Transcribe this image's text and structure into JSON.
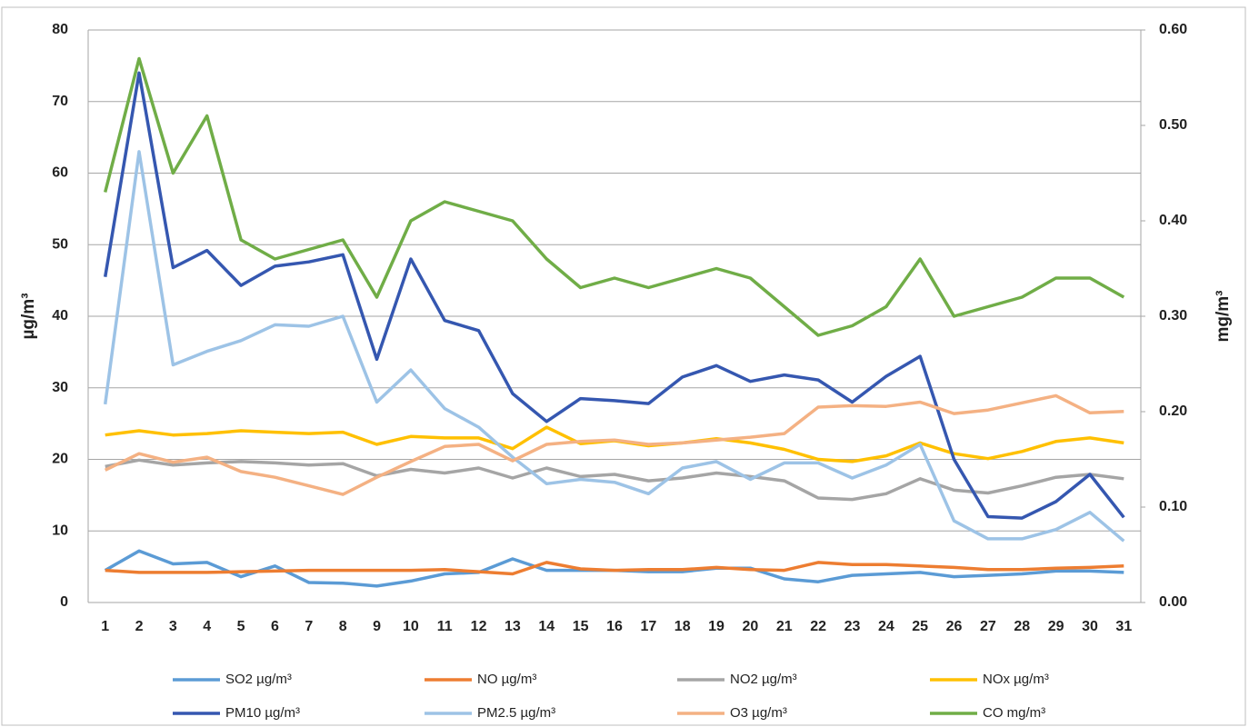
{
  "chart_data": {
    "type": "line",
    "y_label": "µg/m³",
    "y2_label": "mg/m³",
    "categories": [
      1,
      2,
      3,
      4,
      5,
      6,
      7,
      8,
      9,
      10,
      11,
      12,
      13,
      14,
      15,
      16,
      17,
      18,
      19,
      20,
      21,
      22,
      23,
      24,
      25,
      26,
      27,
      28,
      29,
      30,
      31
    ],
    "ylim": [
      0,
      80
    ],
    "yticks": [
      0,
      10,
      20,
      30,
      40,
      50,
      60,
      70,
      80
    ],
    "y2lim": [
      0,
      0.6
    ],
    "y2ticks": [
      {
        "value": 0,
        "label": "0.00"
      },
      {
        "value": 0.1,
        "label": "0.10"
      },
      {
        "value": 0.2,
        "label": "0.20"
      },
      {
        "value": 0.3,
        "label": "0.30"
      },
      {
        "value": 0.4,
        "label": "0.40"
      },
      {
        "value": 0.5,
        "label": "0.50"
      },
      {
        "value": 0.6,
        "label": "0.60"
      }
    ],
    "grid": true,
    "legend": "bottom",
    "series": [
      {
        "name": "SO2 µg/m³",
        "color": "#5b9bd5",
        "values": [
          4.5,
          7.2,
          5.4,
          5.6,
          3.6,
          5.1,
          2.8,
          2.7,
          2.3,
          3,
          4,
          4.2,
          6.1,
          4.5,
          4.5,
          4.5,
          4.3,
          4.3,
          4.8,
          4.8,
          3.3,
          2.9,
          3.8,
          4,
          4.2,
          3.6,
          3.8,
          4,
          4.4,
          4.4,
          4.2
        ]
      },
      {
        "name": "NO µg/m³",
        "color": "#ed7d31",
        "values": [
          4.5,
          4.2,
          4.2,
          4.2,
          4.3,
          4.4,
          4.5,
          4.5,
          4.5,
          4.5,
          4.6,
          4.3,
          4,
          5.6,
          4.7,
          4.5,
          4.6,
          4.6,
          4.9,
          4.6,
          4.5,
          5.6,
          5.3,
          5.3,
          5.1,
          4.9,
          4.6,
          4.6,
          4.8,
          4.9,
          5.1
        ]
      },
      {
        "name": "NO2 µg/m³",
        "color": "#a5a5a5",
        "values": [
          19,
          19.9,
          19.2,
          19.5,
          19.7,
          19.5,
          19.2,
          19.4,
          17.7,
          18.6,
          18.1,
          18.8,
          17.4,
          18.8,
          17.6,
          17.9,
          17,
          17.4,
          18.1,
          17.6,
          17,
          14.6,
          14.4,
          15.2,
          17.3,
          15.7,
          15.3,
          16.3,
          17.5,
          17.9,
          17.3
        ]
      },
      {
        "name": "NOx µg/m³",
        "color": "#ffc000",
        "values": [
          23.4,
          24,
          23.4,
          23.6,
          24,
          23.8,
          23.6,
          23.8,
          22.1,
          23.2,
          23,
          23,
          21.5,
          24.5,
          22.2,
          22.6,
          21.9,
          22.3,
          22.9,
          22.3,
          21.4,
          20,
          19.7,
          20.5,
          22.3,
          20.8,
          20.1,
          21.1,
          22.5,
          23,
          22.3
        ]
      },
      {
        "name": "PM10 µg/m³",
        "color": "#3557b0",
        "values": [
          45.5,
          74,
          46.8,
          49.2,
          44.3,
          47,
          47.6,
          48.6,
          34,
          48,
          39.4,
          38,
          29.2,
          25.3,
          28.5,
          28.2,
          27.8,
          31.5,
          33.1,
          30.9,
          31.8,
          31.1,
          28,
          31.6,
          34.4,
          20,
          12,
          11.8,
          14.1,
          17.9,
          11.9
        ]
      },
      {
        "name": "PM2.5 µg/m³",
        "color": "#9dc3e6",
        "values": [
          27.7,
          63,
          33.2,
          35.1,
          36.6,
          38.8,
          38.6,
          40,
          28,
          32.5,
          27.1,
          24.5,
          20.3,
          16.6,
          17.2,
          16.8,
          15.2,
          18.8,
          19.7,
          17.2,
          19.5,
          19.5,
          17.4,
          19.2,
          22.1,
          11.4,
          8.9,
          8.9,
          10.2,
          12.6,
          8.6
        ]
      },
      {
        "name": "O3 µg/m³",
        "color": "#f4b183",
        "values": [
          18.5,
          20.8,
          19.6,
          20.3,
          18.3,
          17.5,
          16.3,
          15.1,
          17.5,
          19.7,
          21.8,
          22.1,
          19.8,
          22.1,
          22.5,
          22.7,
          22.1,
          22.3,
          22.7,
          23.1,
          23.6,
          27.3,
          27.5,
          27.4,
          28,
          26.4,
          26.9,
          27.9,
          28.9,
          26.5,
          26.7
        ]
      },
      {
        "name": "CO mg/m³",
        "color": "#70ad47",
        "axis": "y2",
        "values": [
          0.43,
          0.57,
          0.45,
          0.51,
          0.38,
          0.36,
          0.37,
          0.38,
          0.32,
          0.4,
          0.42,
          0.41,
          0.4,
          0.36,
          0.33,
          0.34,
          0.33,
          0.34,
          0.35,
          0.34,
          0.31,
          0.28,
          0.29,
          0.31,
          0.36,
          0.3,
          0.31,
          0.32,
          0.34,
          0.34,
          0.32
        ]
      }
    ]
  }
}
